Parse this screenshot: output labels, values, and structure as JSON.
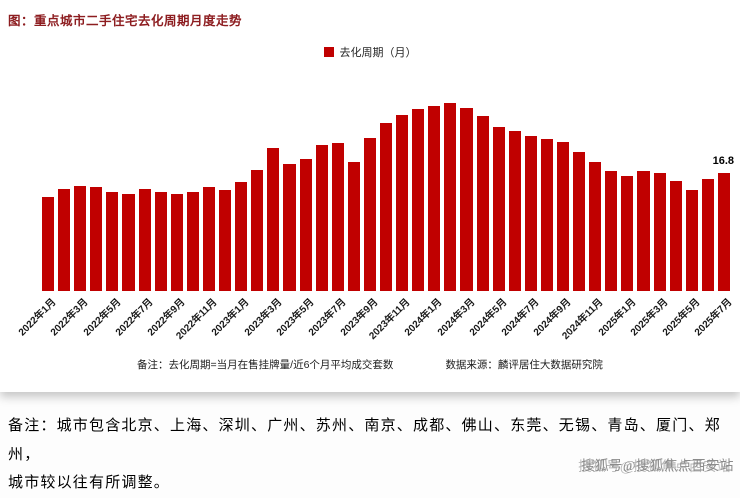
{
  "page": {
    "title": "图：重点城市二手住宅去化周期月度走势",
    "legend_label": "去化周期（月）",
    "note_left": "备注：去化周期=当月在售挂牌量/近6个月平均成交套数",
    "note_right": "数据来源：麟评居住大数据研究院",
    "footer_note_line1": "备注：城市包含北京、上海、深圳、广州、苏州、南京、成都、佛山、东莞、无锡、青岛、厦门、郑州，",
    "footer_note_line2": "城市较以往有所调整。",
    "watermark": "搜狐号@搜狐焦点西安站",
    "accent_color": "#c00000",
    "title_color": "#8d1d20"
  },
  "chart_data": {
    "type": "bar",
    "title": "重点城市二手住宅去化周期月度走势",
    "series_name": "去化周期（月）",
    "unit": "月",
    "ylabel": "去化周期（月）",
    "xlabel": "",
    "ylim": [
      0,
      28
    ],
    "grid": false,
    "legend_position": "top-center",
    "bar_color": "#c00000",
    "categories": [
      "2022年1月",
      "2022年2月",
      "2022年3月",
      "2022年4月",
      "2022年5月",
      "2022年6月",
      "2022年7月",
      "2022年8月",
      "2022年9月",
      "2022年10月",
      "2022年11月",
      "2022年12月",
      "2023年1月",
      "2023年2月",
      "2023年3月",
      "2023年4月",
      "2023年5月",
      "2023年6月",
      "2023年7月",
      "2023年8月",
      "2023年9月",
      "2023年10月",
      "2023年11月",
      "2023年12月",
      "2024年1月",
      "2024年2月",
      "2024年3月",
      "2024年4月",
      "2024年5月",
      "2024年6月",
      "2024年7月",
      "2024年8月",
      "2024年9月",
      "2024年10月",
      "2024年11月",
      "2024年12月",
      "2025年1月",
      "2025年2月",
      "2025年3月",
      "2025年4月",
      "2025年5月",
      "2025年6月",
      "2025年7月"
    ],
    "values": [
      13.5,
      14.6,
      15.0,
      14.8,
      14.2,
      13.9,
      14.6,
      14.2,
      13.8,
      14.1,
      14.9,
      14.4,
      15.6,
      17.3,
      20.4,
      18.1,
      18.8,
      20.9,
      21.2,
      18.4,
      21.8,
      24.0,
      25.1,
      26.0,
      26.5,
      26.8,
      26.2,
      25.0,
      23.4,
      22.8,
      22.1,
      21.7,
      21.3,
      19.8,
      18.4,
      17.1,
      16.5,
      17.2,
      16.8,
      15.7,
      14.5,
      16.0,
      16.8
    ],
    "x_tick_labels": [
      "2022年1月",
      "2022年3月",
      "2022年5月",
      "2022年7月",
      "2022年9月",
      "2022年11月",
      "2023年1月",
      "2023年3月",
      "2023年5月",
      "2023年7月",
      "2023年9月",
      "2023年11月",
      "2024年1月",
      "2024年3月",
      "2024年5月",
      "2024年7月",
      "2024年9月",
      "2024年11月",
      "2025年1月",
      "2025年3月",
      "2025年5月",
      "2025年7月"
    ],
    "x_tick_interval": 2,
    "data_label": {
      "index": 42,
      "category": "2025年7月",
      "text": "16.8",
      "value": 16.8
    }
  }
}
